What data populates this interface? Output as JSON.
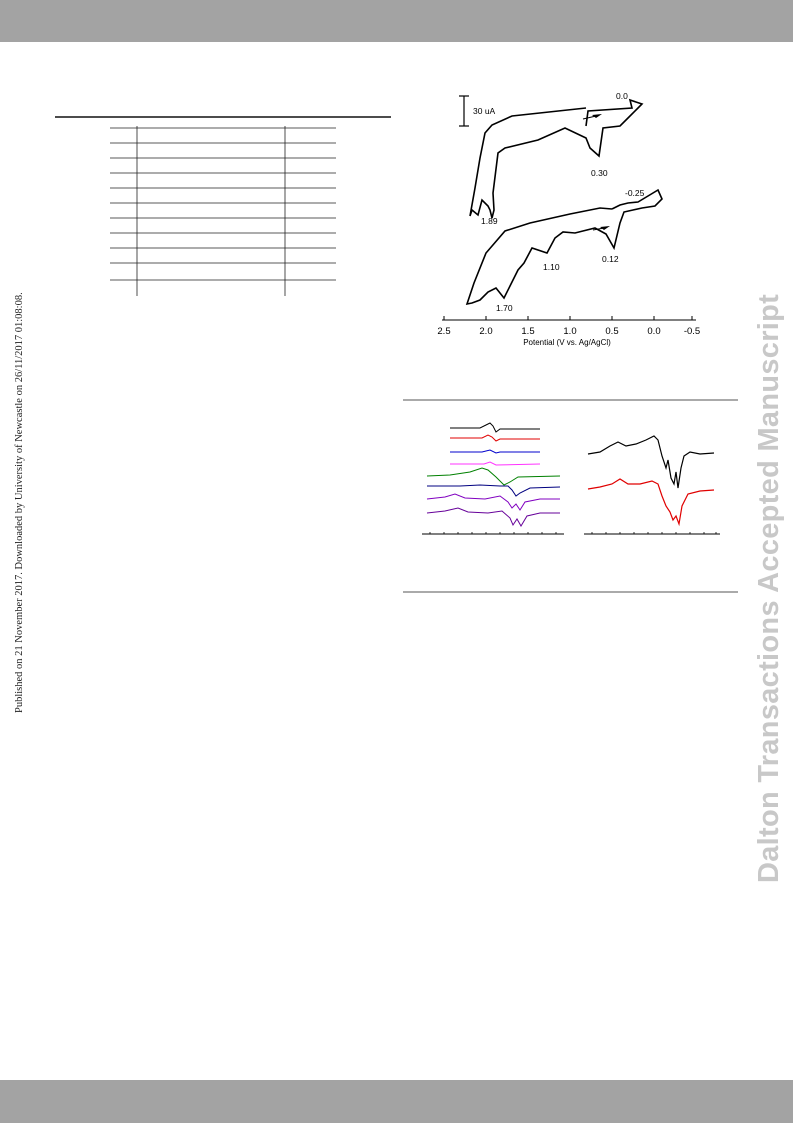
{
  "side_note": "Published on 21 November 2017. Downloaded by University of Newcastle on 26/11/2017 01:08:08.",
  "watermark": "Dalton Transactions Accepted Manuscript",
  "colors": {
    "header_band": "#a3a3a3",
    "watermark": "#c8c8c8",
    "traces_left": [
      "#000000",
      "#e00000",
      "#0000cc",
      "#ff33ff",
      "#008000",
      "#000080",
      "#8000c0",
      "#660099"
    ],
    "traces_right": [
      "#000000",
      "#e00000"
    ]
  },
  "cv_figure": {
    "scale_bar_label": "30 uA",
    "xlabel": "Potential (V vs. Ag/AgCl)",
    "x_ticks": [
      "2.5",
      "2.0",
      "1.5",
      "1.0",
      "0.5",
      "0.0",
      "-0.5"
    ],
    "xlim": [
      2.5,
      -0.5
    ],
    "upper_trace_labels": [
      "0.0",
      "0.30",
      "1.89"
    ],
    "lower_trace_labels": [
      "-0.25",
      "0.12",
      "1.10",
      "1.70"
    ]
  }
}
